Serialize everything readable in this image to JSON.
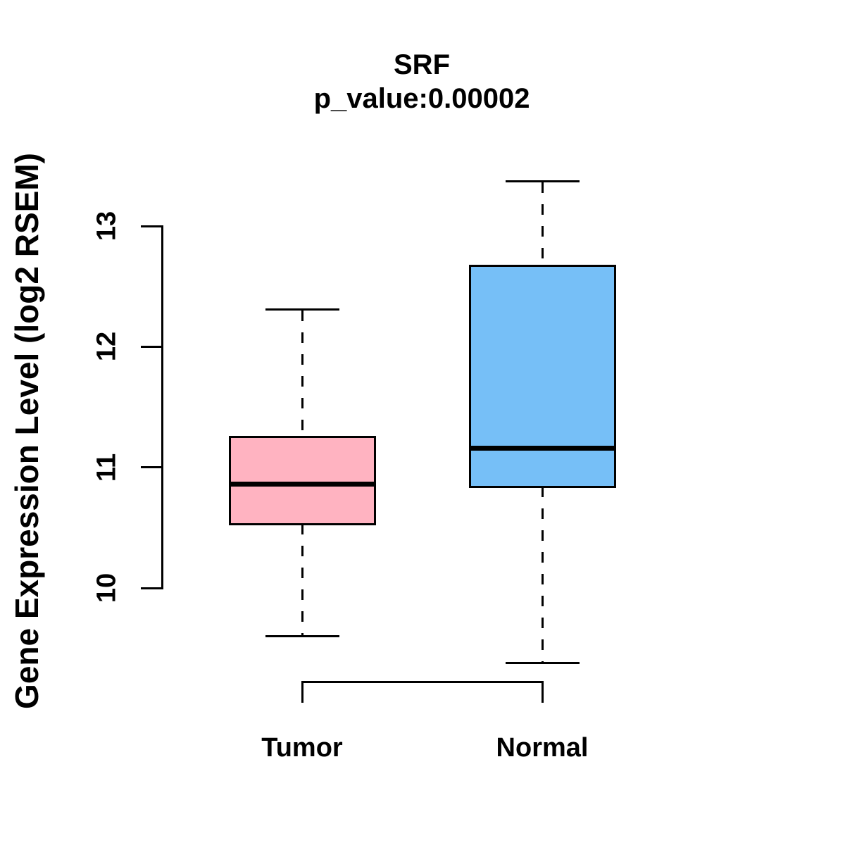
{
  "chart_data": {
    "type": "boxplot",
    "title": "SRF",
    "subtitle": "p_value:0.00002",
    "ylabel": "Gene Expression Level (log2 RSEM)",
    "xlabel": "",
    "y_ticks": [
      10,
      11,
      12,
      13
    ],
    "axis_range": [
      10,
      13
    ],
    "grid": false,
    "legend": "none",
    "categories": [
      "Tumor",
      "Normal"
    ],
    "series": [
      {
        "name": "Tumor",
        "box_color": "#FFB3C1",
        "whisker_low": 9.6,
        "q1": 10.53,
        "median": 10.86,
        "q3": 11.25,
        "whisker_high": 12.31
      },
      {
        "name": "Normal",
        "box_color": "#76BFF7",
        "whisker_low": 9.38,
        "q1": 10.84,
        "median": 11.16,
        "q3": 12.67,
        "whisker_high": 13.37
      }
    ],
    "stroke_color": "#000000",
    "background_color": "#FFFFFF"
  }
}
